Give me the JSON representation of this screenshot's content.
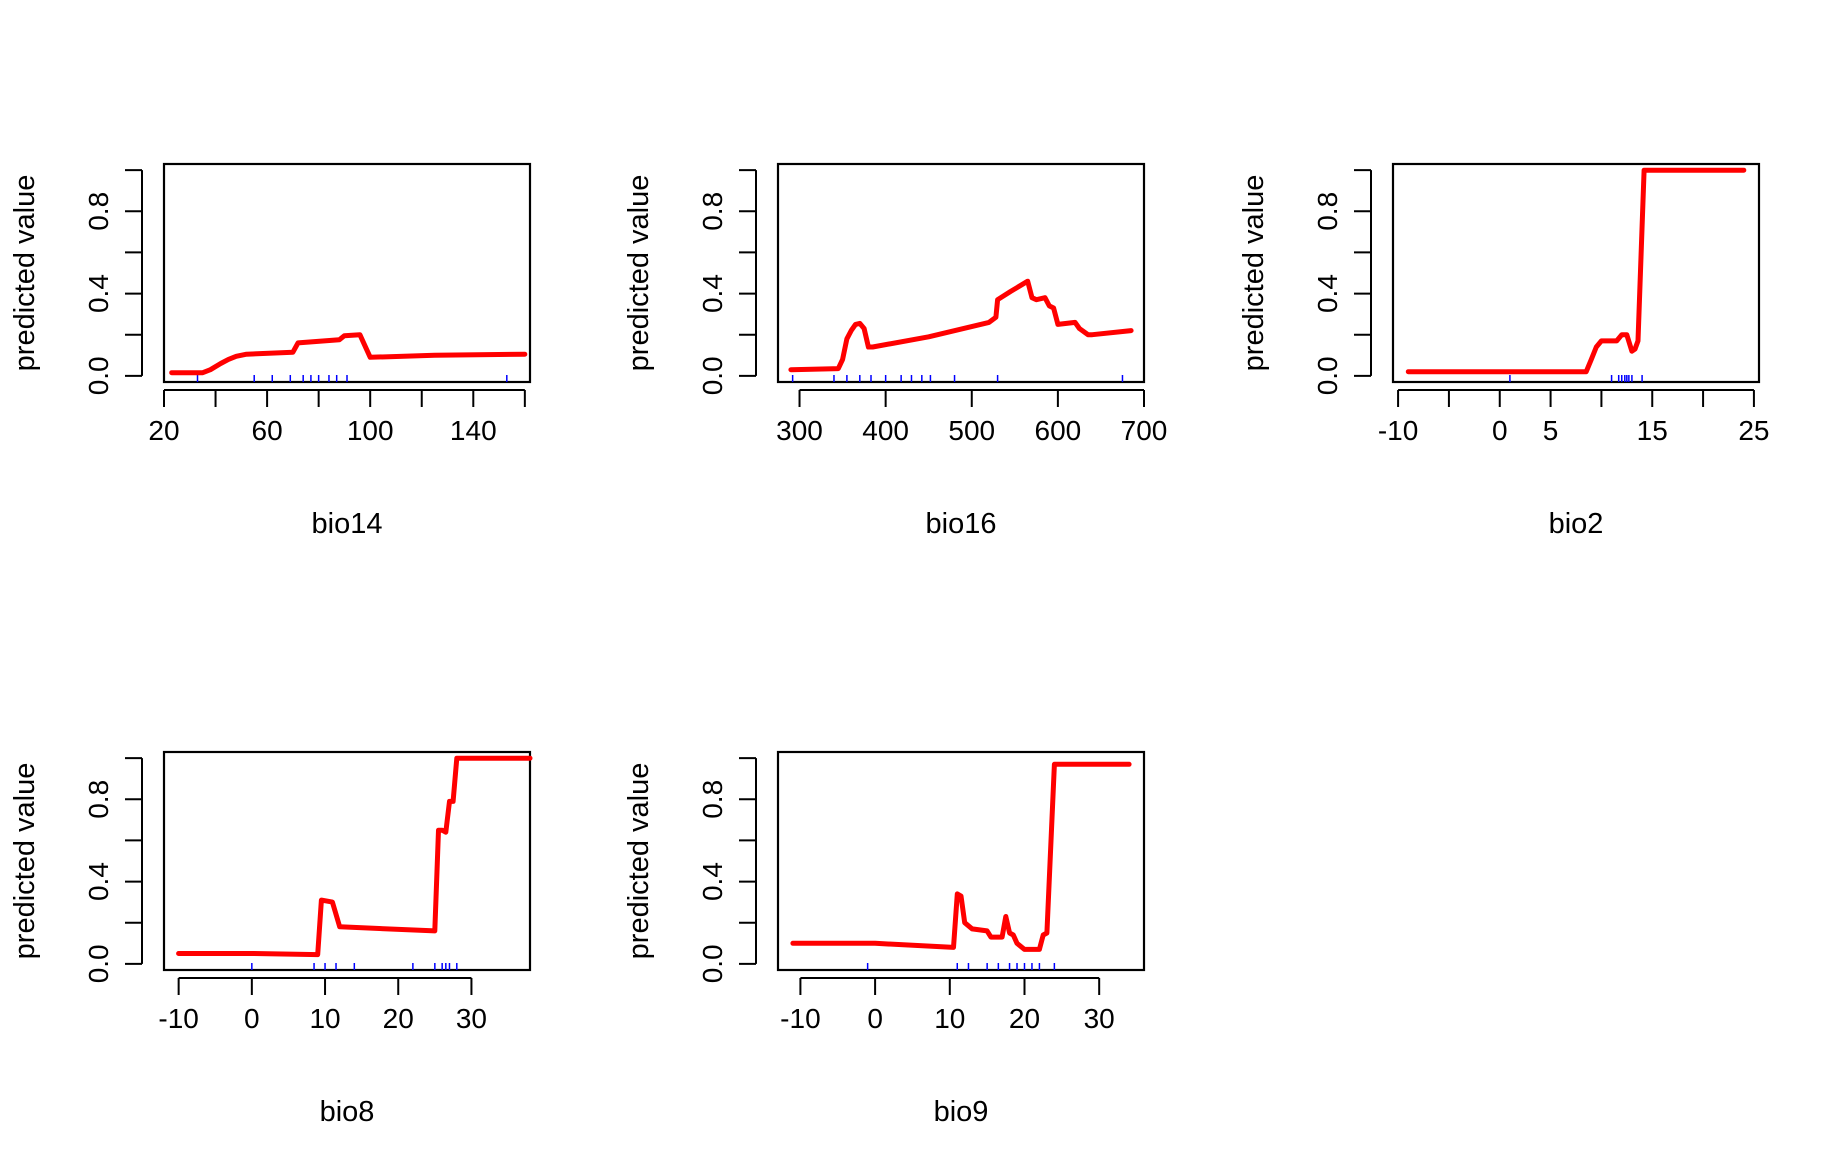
{
  "colors": {
    "curve": "#ff0000",
    "rug": "#0000ff",
    "axis": "#000000",
    "background": "#ffffff"
  },
  "chart_data": [
    {
      "type": "line",
      "xlabel": "bio14",
      "ylabel": "predicted value",
      "xlim": [
        20,
        162
      ],
      "ylim": [
        -0.03,
        1.03
      ],
      "xticks": [
        20,
        40,
        60,
        80,
        100,
        120,
        140,
        160
      ],
      "xtick_labels": [
        "20",
        "",
        "60",
        "",
        "100",
        "",
        "140",
        ""
      ],
      "yticks": [
        0.0,
        0.2,
        0.4,
        0.6,
        0.8,
        1.0
      ],
      "ytick_labels": [
        "0.0",
        "",
        "0.4",
        "",
        "0.8",
        ""
      ],
      "series": [
        {
          "name": "response",
          "x": [
            23,
            35,
            38,
            42,
            45,
            48,
            52,
            70,
            72,
            88,
            90,
            96,
            100,
            125,
            160
          ],
          "y": [
            0.015,
            0.015,
            0.03,
            0.06,
            0.08,
            0.095,
            0.105,
            0.115,
            0.16,
            0.175,
            0.195,
            0.2,
            0.09,
            0.1,
            0.105
          ]
        }
      ],
      "rug": [
        33,
        55,
        62,
        69,
        74,
        77,
        80,
        84,
        87,
        91,
        153
      ]
    },
    {
      "type": "line",
      "xlabel": "bio16",
      "ylabel": "predicted value",
      "xlim": [
        275,
        700
      ],
      "ylim": [
        -0.03,
        1.03
      ],
      "xticks": [
        300,
        400,
        500,
        600,
        700
      ],
      "xtick_labels": [
        "300",
        "400",
        "500",
        "600",
        "700"
      ],
      "yticks": [
        0.0,
        0.2,
        0.4,
        0.6,
        0.8,
        1.0
      ],
      "ytick_labels": [
        "0.0",
        "",
        "0.4",
        "",
        "0.8",
        ""
      ],
      "series": [
        {
          "name": "response",
          "x": [
            290,
            345,
            350,
            355,
            360,
            365,
            370,
            375,
            380,
            385,
            450,
            520,
            528,
            530,
            545,
            565,
            570,
            575,
            585,
            590,
            595,
            600,
            620,
            625,
            635,
            640,
            685
          ],
          "y": [
            0.03,
            0.035,
            0.08,
            0.18,
            0.22,
            0.25,
            0.255,
            0.23,
            0.14,
            0.14,
            0.19,
            0.26,
            0.285,
            0.37,
            0.41,
            0.46,
            0.38,
            0.37,
            0.38,
            0.34,
            0.33,
            0.25,
            0.26,
            0.23,
            0.2,
            0.2,
            0.22
          ]
        }
      ],
      "rug": [
        292,
        340,
        355,
        370,
        383,
        400,
        418,
        430,
        442,
        452,
        480,
        530,
        675
      ]
    },
    {
      "type": "line",
      "xlabel": "bio2",
      "ylabel": "predicted value",
      "xlim": [
        -10.5,
        25.5
      ],
      "ylim": [
        -0.03,
        1.03
      ],
      "xticks": [
        -10,
        -5,
        0,
        5,
        10,
        15,
        20,
        25
      ],
      "xtick_labels": [
        "-10",
        "",
        "0",
        "5",
        "",
        "15",
        "",
        "25"
      ],
      "yticks": [
        0.0,
        0.2,
        0.4,
        0.6,
        0.8,
        1.0
      ],
      "ytick_labels": [
        "0.0",
        "",
        "0.4",
        "",
        "0.8",
        ""
      ],
      "series": [
        {
          "name": "response",
          "x": [
            -9,
            8.5,
            9,
            9.5,
            10,
            11.5,
            12,
            12.5,
            13,
            13.3,
            13.6,
            14.2,
            24
          ],
          "y": [
            0.02,
            0.02,
            0.08,
            0.14,
            0.17,
            0.17,
            0.2,
            0.2,
            0.12,
            0.13,
            0.17,
            1.0,
            1.0
          ]
        }
      ],
      "rug": [
        1,
        11,
        11.7,
        12,
        12.3,
        12.5,
        12.7,
        13,
        14
      ]
    },
    {
      "type": "line",
      "xlabel": "bio8",
      "ylabel": "predicted value",
      "xlim": [
        -12,
        38
      ],
      "ylim": [
        -0.03,
        1.03
      ],
      "xticks": [
        -10,
        0,
        10,
        20,
        30
      ],
      "xtick_labels": [
        "-10",
        "0",
        "10",
        "20",
        "30"
      ],
      "yticks": [
        0.0,
        0.2,
        0.4,
        0.6,
        0.8,
        1.0
      ],
      "ytick_labels": [
        "0.0",
        "",
        "0.4",
        "",
        "0.8",
        ""
      ],
      "series": [
        {
          "name": "response",
          "x": [
            -10,
            0,
            9,
            9.5,
            11,
            12,
            25,
            25.5,
            26,
            26.5,
            27,
            27.5,
            28,
            38
          ],
          "y": [
            0.05,
            0.05,
            0.045,
            0.31,
            0.3,
            0.18,
            0.16,
            0.65,
            0.65,
            0.64,
            0.79,
            0.79,
            1.0,
            1.0
          ]
        }
      ],
      "rug": [
        0,
        8.5,
        10,
        11.5,
        14,
        22,
        25,
        26,
        26.5,
        27,
        28
      ]
    },
    {
      "type": "line",
      "xlabel": "bio9",
      "ylabel": "predicted value",
      "xlim": [
        -13,
        36
      ],
      "ylim": [
        -0.03,
        1.03
      ],
      "xticks": [
        -10,
        0,
        10,
        20,
        30
      ],
      "xtick_labels": [
        "-10",
        "0",
        "10",
        "20",
        "30"
      ],
      "yticks": [
        0.0,
        0.2,
        0.4,
        0.6,
        0.8,
        1.0
      ],
      "ytick_labels": [
        "0.0",
        "",
        "0.4",
        "",
        "0.8",
        ""
      ],
      "series": [
        {
          "name": "response",
          "x": [
            -11,
            0,
            10.5,
            11,
            11.5,
            12,
            13,
            15,
            15.5,
            17,
            17.5,
            18,
            18.5,
            19,
            20,
            22,
            22.5,
            23,
            24,
            34
          ],
          "y": [
            0.1,
            0.1,
            0.08,
            0.34,
            0.33,
            0.2,
            0.17,
            0.16,
            0.13,
            0.13,
            0.23,
            0.15,
            0.14,
            0.1,
            0.07,
            0.07,
            0.14,
            0.15,
            0.97,
            0.97
          ]
        }
      ],
      "rug": [
        -1,
        11,
        12.5,
        15,
        16.5,
        18,
        19,
        20,
        21,
        22,
        24
      ]
    }
  ]
}
